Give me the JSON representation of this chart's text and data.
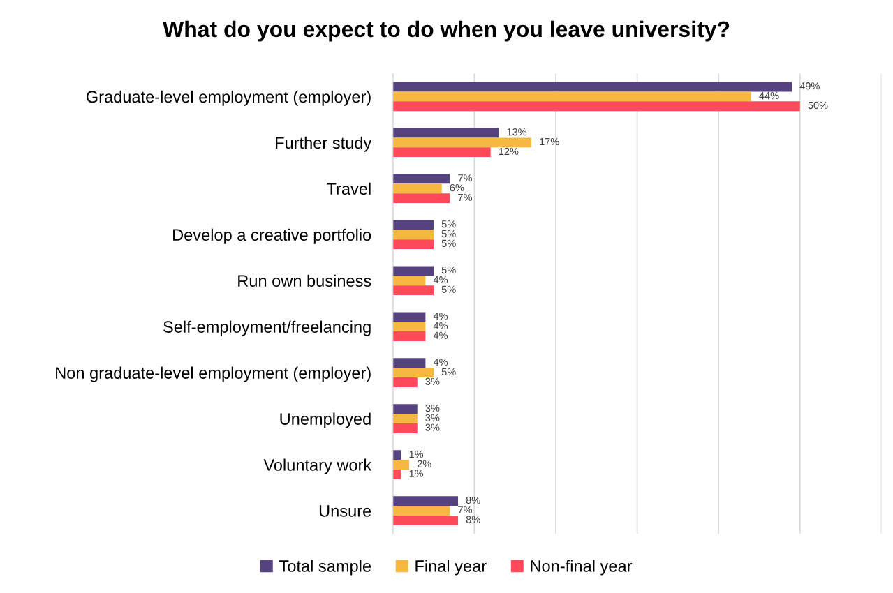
{
  "chart_data": {
    "type": "bar",
    "orientation": "horizontal",
    "title": "What do you expect to do when you leave university?",
    "categories": [
      "Graduate-level employment (employer)",
      "Further study",
      "Travel",
      "Develop a creative portfolio",
      "Run own business",
      "Self-employment/freelancing",
      "Non graduate-level employment (employer)",
      "Unemployed",
      "Voluntary work",
      "Unsure"
    ],
    "series": [
      {
        "name": "Total sample",
        "color": "#55437f",
        "values": [
          49,
          13,
          7,
          5,
          5,
          4,
          4,
          3,
          1,
          8
        ],
        "value_labels": [
          "49%",
          "13%",
          "7%",
          "5%",
          "5%",
          "4%",
          "4%",
          "3%",
          "1%",
          "8%"
        ]
      },
      {
        "name": "Final year",
        "color": "#f5b942",
        "values": [
          44,
          17,
          6,
          5,
          4,
          4,
          5,
          3,
          2,
          7
        ],
        "value_labels": [
          "44%",
          "17%",
          "6%",
          "5%",
          "4%",
          "4%",
          "5%",
          "3%",
          "2%",
          "7%"
        ]
      },
      {
        "name": "Non-final year",
        "color": "#ff4a5b",
        "values": [
          50,
          12,
          7,
          5,
          5,
          4,
          3,
          3,
          1,
          8
        ],
        "value_labels": [
          "50%",
          "12%",
          "7%",
          "5%",
          "5%",
          "4%",
          "3%",
          "3%",
          "1%",
          "8%"
        ]
      }
    ],
    "xlim": [
      0,
      60
    ],
    "xticks": [
      {
        "value": 0,
        "label": null
      },
      {
        "value": 10,
        "label": null
      },
      {
        "value": 20,
        "label": null
      },
      {
        "value": 30,
        "label": null
      },
      {
        "value": 40,
        "label": null
      },
      {
        "value": 50,
        "label": null
      },
      {
        "value": 60,
        "label": null
      }
    ],
    "tick_labels": "y",
    "grid": "x",
    "legend": "bottom"
  }
}
